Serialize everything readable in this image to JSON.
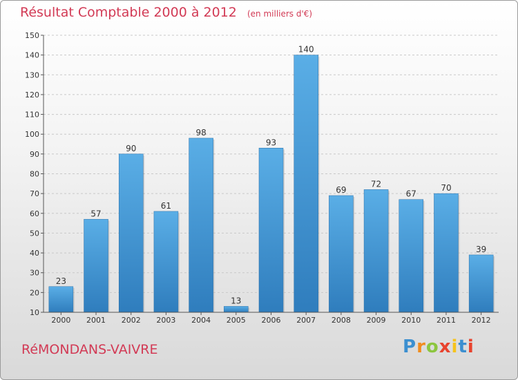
{
  "chart_data": {
    "type": "bar",
    "title": "Résultat Comptable 2000 à 2012",
    "subtitle": "(en milliers d'€)",
    "categories": [
      "2000",
      "2001",
      "2002",
      "2003",
      "2004",
      "2005",
      "2006",
      "2007",
      "2008",
      "2009",
      "2010",
      "2011",
      "2012"
    ],
    "values": [
      23,
      57,
      90,
      61,
      98,
      13,
      93,
      140,
      69,
      72,
      67,
      70,
      39
    ],
    "xlabel": "",
    "ylabel": "",
    "ylim": [
      10,
      150
    ],
    "yticks": [
      10,
      20,
      30,
      40,
      50,
      60,
      70,
      80,
      90,
      100,
      110,
      120,
      130,
      140,
      150
    ],
    "grid": true,
    "bar_color": "#4f9fdc"
  },
  "commune": "RéMONDANS-VAIVRE",
  "brand": {
    "letters": [
      "P",
      "r",
      "o",
      "x",
      "i",
      "t",
      "i"
    ],
    "colors": [
      "#3b8fd0",
      "#f08c1e",
      "#8cc63f",
      "#e8432e",
      "#f6c31c",
      "#3b8fd0",
      "#e8432e"
    ]
  }
}
